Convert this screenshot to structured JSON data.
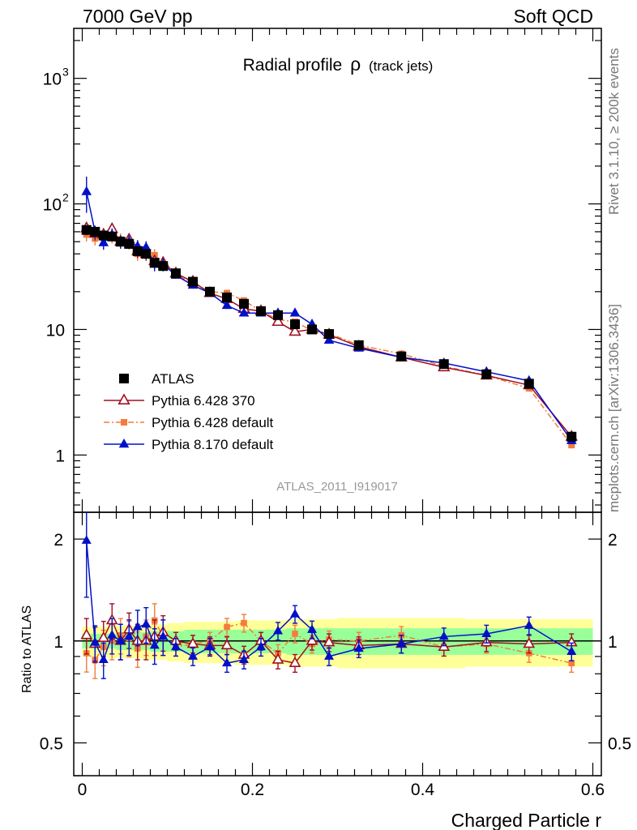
{
  "header": {
    "left": "7000 GeV pp",
    "right": "Soft QCD"
  },
  "side_labels": {
    "rivet": "Rivet 3.1.10, ≥ 200k events",
    "mcplots": "mcplots.cern.ch [arXiv:1306.3436]"
  },
  "chart_data": {
    "type": "scatter",
    "title": "Radial profile",
    "title_symbol": "ρ",
    "title_suffix": "(track jets)",
    "analysis_label": "ATLAS_2011_I919017",
    "xlabel": "Charged Particle r",
    "xlim": [
      -0.01,
      0.61
    ],
    "xticks": [
      {
        "value": 0,
        "label": "0"
      },
      {
        "value": 0.2,
        "label": "0.2"
      },
      {
        "value": 0.4,
        "label": "0.4"
      },
      {
        "value": 0.6,
        "label": "0.6"
      }
    ],
    "main_panel": {
      "yscale": "log",
      "ylim": [
        0.35,
        2500
      ],
      "yticks": [
        {
          "value": 1,
          "label": "1",
          "sup": ""
        },
        {
          "value": 10,
          "label": "10",
          "sup": ""
        },
        {
          "value": 100,
          "label": "10",
          "sup": "2"
        },
        {
          "value": 1000,
          "label": "10",
          "sup": "3"
        }
      ]
    },
    "ratio_panel": {
      "ylabel": "Ratio to ATLAS",
      "yscale": "log",
      "ylim": [
        0.4,
        2.4
      ],
      "yticks": [
        {
          "value": 0.5,
          "label": "0.5"
        },
        {
          "value": 1,
          "label": "1"
        },
        {
          "value": 2,
          "label": "2"
        }
      ]
    },
    "legend": {
      "placement": "lower-left",
      "entries": [
        {
          "label": "ATLAS",
          "series": "atlas"
        },
        {
          "label": "Pythia 6.428 370",
          "series": "p370"
        },
        {
          "label": "Pythia 6.428 default",
          "series": "p6def"
        },
        {
          "label": "Pythia 8.170 default",
          "series": "p8"
        }
      ]
    },
    "x": [
      0.005,
      0.015,
      0.025,
      0.035,
      0.045,
      0.055,
      0.065,
      0.075,
      0.085,
      0.095,
      0.11,
      0.13,
      0.15,
      0.17,
      0.19,
      0.21,
      0.23,
      0.25,
      0.27,
      0.29,
      0.325,
      0.375,
      0.425,
      0.475,
      0.525,
      0.575
    ],
    "band": {
      "x_edges": [
        0,
        0.01,
        0.02,
        0.03,
        0.04,
        0.05,
        0.06,
        0.07,
        0.08,
        0.09,
        0.1,
        0.12,
        0.14,
        0.16,
        0.18,
        0.2,
        0.22,
        0.24,
        0.26,
        0.28,
        0.3,
        0.35,
        0.4,
        0.45,
        0.5,
        0.55,
        0.6
      ],
      "stat_lo": [
        0.95,
        0.95,
        0.95,
        0.95,
        0.94,
        0.94,
        0.94,
        0.94,
        0.93,
        0.93,
        0.93,
        0.92,
        0.92,
        0.92,
        0.92,
        0.92,
        0.92,
        0.91,
        0.91,
        0.91,
        0.91,
        0.91,
        0.91,
        0.91,
        0.91,
        0.91
      ],
      "stat_hi": [
        1.05,
        1.05,
        1.05,
        1.05,
        1.06,
        1.06,
        1.06,
        1.06,
        1.07,
        1.07,
        1.07,
        1.08,
        1.08,
        1.08,
        1.08,
        1.08,
        1.08,
        1.09,
        1.09,
        1.09,
        1.09,
        1.09,
        1.09,
        1.09,
        1.09,
        1.09
      ],
      "syst_lo": [
        0.9,
        0.9,
        0.9,
        0.89,
        0.89,
        0.89,
        0.89,
        0.88,
        0.88,
        0.88,
        0.87,
        0.86,
        0.86,
        0.86,
        0.85,
        0.85,
        0.85,
        0.84,
        0.84,
        0.84,
        0.83,
        0.83,
        0.83,
        0.84,
        0.84,
        0.84
      ],
      "syst_hi": [
        1.1,
        1.1,
        1.1,
        1.11,
        1.11,
        1.11,
        1.11,
        1.12,
        1.12,
        1.12,
        1.13,
        1.14,
        1.14,
        1.14,
        1.15,
        1.15,
        1.15,
        1.16,
        1.16,
        1.16,
        1.17,
        1.17,
        1.17,
        1.16,
        1.16,
        1.16
      ]
    },
    "series": [
      {
        "id": "atlas",
        "name": "ATLAS",
        "color": "#000000",
        "marker": "square",
        "line": "none",
        "y": [
          62,
          60,
          56,
          55,
          50,
          48,
          42,
          40,
          34,
          32,
          28,
          24,
          20,
          18,
          16,
          14,
          13,
          11,
          10,
          9.2,
          7.5,
          6.1,
          5.3,
          4.4,
          3.7,
          1.4
        ],
        "ratio": [
          1,
          1,
          1,
          1,
          1,
          1,
          1,
          1,
          1,
          1,
          1,
          1,
          1,
          1,
          1,
          1,
          1,
          1,
          1,
          1,
          1,
          1,
          1,
          1,
          1,
          1
        ]
      },
      {
        "id": "p370",
        "name": "Pythia 6.428 370",
        "color": "#a01020",
        "marker": "triangle-open",
        "line": "solid",
        "y": [
          64,
          58,
          57,
          63,
          50,
          52,
          42,
          40,
          35,
          34,
          28,
          24,
          19.5,
          17.5,
          14.6,
          14,
          11.5,
          9.6,
          10,
          9.1,
          7.3,
          6.0,
          5.0,
          4.3,
          3.6,
          1.4
        ],
        "ratio": [
          1.04,
          0.98,
          1.02,
          1.15,
          1.0,
          1.08,
          1.0,
          1.0,
          1.03,
          1.06,
          1.0,
          0.98,
          0.97,
          0.97,
          0.91,
          1.0,
          0.88,
          0.86,
          1.0,
          0.99,
          0.97,
          0.98,
          0.96,
          0.99,
          0.98,
          0.99
        ]
      },
      {
        "id": "p6def",
        "name": "Pythia 6.428 default",
        "color": "#f47c3c",
        "marker": "square-small",
        "line": "dashdot",
        "y": [
          57,
          53,
          54,
          55,
          52,
          49,
          40,
          41,
          39,
          33,
          27,
          23.5,
          20,
          19.5,
          17,
          14,
          12,
          11.5,
          9.8,
          9.3,
          7.5,
          6.4,
          5.1,
          4.3,
          3.4,
          1.2
        ],
        "ratio": [
          0.92,
          0.88,
          0.96,
          1.0,
          1.04,
          1.02,
          0.95,
          1.03,
          1.15,
          1.03,
          0.96,
          0.98,
          1.0,
          1.1,
          1.13,
          1.0,
          0.92,
          1.05,
          0.98,
          1.01,
          1.0,
          1.04,
          0.96,
          0.98,
          0.92,
          0.86
        ]
      },
      {
        "id": "p8",
        "name": "Pythia 8.170 default",
        "color": "#0010c8",
        "marker": "triangle",
        "line": "solid",
        "y": [
          125,
          60,
          49,
          57,
          50,
          50,
          46,
          45,
          33,
          33,
          27,
          22.5,
          19.5,
          15.5,
          13.5,
          13.5,
          13.5,
          13.5,
          11,
          8.2,
          7.1,
          6.0,
          5.4,
          4.6,
          3.9,
          1.3
        ],
        "ratio": [
          1.98,
          0.99,
          0.88,
          1.04,
          1.0,
          1.03,
          1.1,
          1.12,
          0.97,
          1.03,
          0.96,
          0.9,
          0.96,
          0.86,
          0.88,
          0.96,
          1.07,
          1.2,
          1.08,
          0.9,
          0.95,
          0.98,
          1.03,
          1.05,
          1.11,
          0.93
        ]
      }
    ]
  }
}
